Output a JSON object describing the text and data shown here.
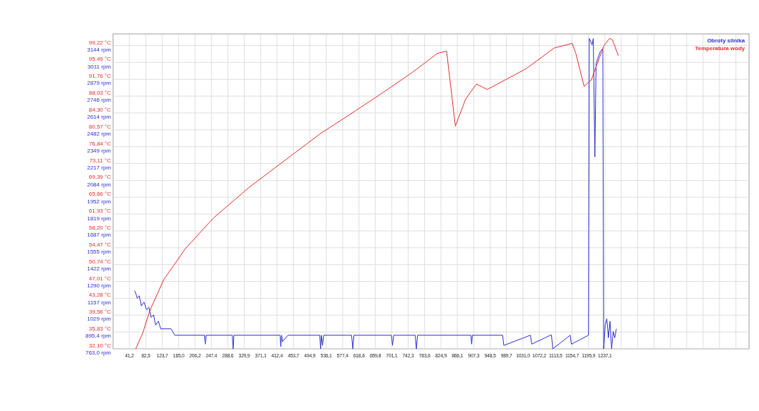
{
  "chart_data": {
    "type": "line",
    "legend": "top right",
    "grid": true,
    "xlim": [
      0,
      1600
    ],
    "xticks": [
      {
        "value": 41.2,
        "label": "41,2"
      },
      {
        "value": 82.5,
        "label": "82,5"
      },
      {
        "value": 123.7,
        "label": "123,7"
      },
      {
        "value": 165.0,
        "label": "165,0"
      },
      {
        "value": 206.2,
        "label": "206,2"
      },
      {
        "value": 247.4,
        "label": "247,4"
      },
      {
        "value": 288.6,
        "label": "288,6"
      },
      {
        "value": 329.9,
        "label": "329,9"
      },
      {
        "value": 371.1,
        "label": "371,1"
      },
      {
        "value": 412.4,
        "label": "412,4"
      },
      {
        "value": 453.7,
        "label": "453,7"
      },
      {
        "value": 494.9,
        "label": "494,9"
      },
      {
        "value": 536.1,
        "label": "536,1"
      },
      {
        "value": 577.4,
        "label": "577,4"
      },
      {
        "value": 618.6,
        "label": "618,6"
      },
      {
        "value": 659.8,
        "label": "659,8"
      },
      {
        "value": 701.1,
        "label": "701,1"
      },
      {
        "value": 742.3,
        "label": "742,3"
      },
      {
        "value": 783.6,
        "label": "783,6"
      },
      {
        "value": 824.9,
        "label": "824,9"
      },
      {
        "value": 866.1,
        "label": "866,1"
      },
      {
        "value": 907.3,
        "label": "907,3"
      },
      {
        "value": 948.5,
        "label": "948,5"
      },
      {
        "value": 989.7,
        "label": "989,7"
      },
      {
        "value": 1031.0,
        "label": "1031,0"
      },
      {
        "value": 1072.2,
        "label": "1072,2"
      },
      {
        "value": 1113.5,
        "label": "1113,5"
      },
      {
        "value": 1154.7,
        "label": "1154,7"
      },
      {
        "value": 1195.9,
        "label": "1195,9"
      },
      {
        "value": 1237.1,
        "label": "1237,1"
      },
      {
        "value": 1278.3,
        "label": null
      },
      {
        "value": 1319.5,
        "label": null
      },
      {
        "value": 1360.7,
        "label": null
      },
      {
        "value": 1401.9,
        "label": null
      },
      {
        "value": 1443.1,
        "label": null
      },
      {
        "value": 1484.3,
        "label": null
      },
      {
        "value": 1525.5,
        "label": null
      },
      {
        "value": 1566.7,
        "label": null
      }
    ],
    "ylim": [
      32.1,
      101.8
    ],
    "yticks": [
      {
        "value": 32.1,
        "label": "32,10 °C"
      },
      {
        "value": 35.83,
        "label": "35,83 °C"
      },
      {
        "value": 39.56,
        "label": "39,56 °C"
      },
      {
        "value": 43.28,
        "label": "43,28 °C"
      },
      {
        "value": 47.01,
        "label": "47,01 °C"
      },
      {
        "value": 50.74,
        "label": "50,74 °C"
      },
      {
        "value": 54.47,
        "label": "54,47 °C"
      },
      {
        "value": 58.2,
        "label": "58,20 °C"
      },
      {
        "value": 61.93,
        "label": "61,93 °C"
      },
      {
        "value": 65.66,
        "label": "65,66 °C"
      },
      {
        "value": 69.39,
        "label": "69,39 °C"
      },
      {
        "value": 73.11,
        "label": "73,11 °C"
      },
      {
        "value": 76.84,
        "label": "76,84 °C"
      },
      {
        "value": 80.57,
        "label": "80,57 °C"
      },
      {
        "value": 84.3,
        "label": "84,30 °C"
      },
      {
        "value": 88.03,
        "label": "88,03 °C"
      },
      {
        "value": 91.76,
        "label": "91,76 °C"
      },
      {
        "value": 95.49,
        "label": "95,49 °C"
      },
      {
        "value": 99.22,
        "label": "99,22 °C"
      }
    ],
    "y2lim": [
      763,
      3236
    ],
    "y2ticks": [
      {
        "value": 763,
        "label": "763,0 rpm"
      },
      {
        "value": 895.4,
        "label": "895,4 rpm"
      },
      {
        "value": 1029,
        "label": "1029 rpm"
      },
      {
        "value": 1157,
        "label": "1157 rpm"
      },
      {
        "value": 1290,
        "label": "1290 rpm"
      },
      {
        "value": 1422,
        "label": "1422 rpm"
      },
      {
        "value": 1555,
        "label": "1555 rpm"
      },
      {
        "value": 1687,
        "label": "1687 rpm"
      },
      {
        "value": 1819,
        "label": "1819 rpm"
      },
      {
        "value": 1952,
        "label": "1952 rpm"
      },
      {
        "value": 2084,
        "label": "2084 rpm"
      },
      {
        "value": 2217,
        "label": "2217 rpm"
      },
      {
        "value": 2349,
        "label": "2349 rpm"
      },
      {
        "value": 2482,
        "label": "2482 rpm"
      },
      {
        "value": 2614,
        "label": "2614 rpm"
      },
      {
        "value": 2746,
        "label": "2746 rpm"
      },
      {
        "value": 2879,
        "label": "2879 rpm"
      },
      {
        "value": 3011,
        "label": "3011 rpm"
      },
      {
        "value": 3144,
        "label": "3144 rpm"
      }
    ],
    "series": [
      {
        "name": "Obroty silnika",
        "color": "#2b2bd6",
        "axis": "y2",
        "x": [
          54,
          58,
          61,
          66,
          71,
          78,
          84,
          90,
          96,
          102,
          107,
          114,
          120,
          146,
          155,
          230,
          232,
          234,
          300,
          302,
          304,
          330,
          420,
          422,
          424,
          426,
          440,
          520,
          522,
          524,
          527,
          530,
          600,
          603,
          606,
          700,
          703,
          706,
          760,
          763,
          766,
          900,
          902,
          904,
          980,
          983,
          1050,
          1053,
          1100,
          1103,
          1106,
          1150,
          1153,
          1196,
          1198,
          1205,
          1208,
          1212,
          1215,
          1220,
          1226,
          1232,
          1234,
          1238,
          1242,
          1246,
          1250,
          1254,
          1258,
          1262,
          1266
        ],
        "values": [
          1220,
          1190,
          1160,
          1180,
          1100,
          1130,
          1070,
          1090,
          1010,
          1030,
          950,
          980,
          920,
          920,
          870,
          870,
          800,
          870,
          870,
          763,
          870,
          870,
          870,
          780,
          870,
          820,
          870,
          870,
          763,
          870,
          790,
          870,
          870,
          763,
          870,
          870,
          790,
          870,
          870,
          763,
          870,
          870,
          800,
          870,
          870,
          790,
          870,
          800,
          870,
          870,
          763,
          870,
          800,
          870,
          3200,
          3150,
          3200,
          2270,
          3000,
          3050,
          3100,
          3120,
          763,
          950,
          1000,
          850,
          980,
          763,
          900,
          850,
          920
        ]
      },
      {
        "name": "Temperatura wody",
        "color": "#e62a2a",
        "axis": "y",
        "x": [
          57,
          75,
          93,
          128,
          182,
          253,
          343,
          432,
          521,
          610,
          682,
          753,
          816,
          839,
          861,
          887,
          914,
          941,
          967,
          1039,
          1110,
          1155,
          1164,
          1185,
          1203,
          1217,
          1235,
          1249,
          1256,
          1271
        ],
        "values": [
          32.1,
          35.7,
          40.7,
          47.5,
          54.3,
          61.1,
          67.9,
          73.8,
          79.7,
          84.8,
          89.0,
          93.3,
          97.5,
          98.0,
          81.4,
          87.4,
          90.7,
          89.5,
          90.7,
          94.1,
          98.7,
          99.7,
          97.5,
          90.2,
          91.6,
          95.0,
          99.2,
          100.8,
          100.5,
          97.0
        ]
      }
    ]
  }
}
